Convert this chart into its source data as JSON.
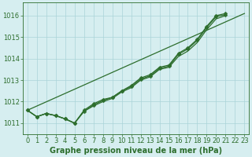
{
  "title": "Graphe pression niveau de la mer (hPa)",
  "bg_color": "#d6eef0",
  "grid_color": "#aad4d8",
  "line_color": "#2d6e2d",
  "xlim": [
    -0.5,
    23.5
  ],
  "ylim": [
    1010.5,
    1016.6
  ],
  "yticks": [
    1011,
    1012,
    1013,
    1014,
    1015,
    1016
  ],
  "xticks": [
    0,
    1,
    2,
    3,
    4,
    5,
    6,
    7,
    8,
    9,
    10,
    11,
    12,
    13,
    14,
    15,
    16,
    17,
    18,
    19,
    20,
    21,
    22,
    23
  ],
  "series": [
    {
      "x": [
        0,
        1,
        2,
        3,
        4,
        5,
        6,
        7,
        8,
        9,
        10,
        11,
        12,
        13,
        14,
        15,
        16,
        17,
        18,
        19,
        20,
        21,
        22,
        23
      ],
      "y": [
        1011.6,
        1011.3,
        1011.45,
        1011.35,
        1011.2,
        1011.0,
        1011.55,
        1011.85,
        1012.05,
        1012.2,
        1012.5,
        1012.7,
        1013.05,
        1013.2,
        1013.55,
        1013.65,
        1014.2,
        1014.45,
        1014.85,
        1015.45,
        1015.95,
        1016.05,
        null,
        null
      ],
      "marker": true
    },
    {
      "x": [
        0,
        1,
        2,
        3,
        4,
        5,
        6,
        7,
        8,
        9,
        10,
        11,
        12,
        13,
        14,
        15,
        16,
        17,
        18,
        19,
        20,
        21,
        22,
        23
      ],
      "y": [
        1011.6,
        1011.3,
        1011.45,
        1011.35,
        1011.2,
        1011.0,
        1011.6,
        1011.9,
        1012.1,
        1012.2,
        1012.5,
        1012.75,
        1013.1,
        1013.25,
        1013.6,
        1013.7,
        1014.25,
        1014.5,
        1014.9,
        1015.5,
        1016.0,
        1016.1,
        null,
        null
      ],
      "marker": true
    },
    {
      "x": [
        0,
        1,
        2,
        3,
        4,
        5,
        6,
        7,
        8,
        9,
        10,
        11,
        12,
        13,
        14,
        15,
        16,
        17,
        18,
        19,
        20,
        21,
        22,
        23
      ],
      "y": [
        1011.6,
        1011.3,
        1011.45,
        1011.35,
        1011.2,
        1011.0,
        1011.55,
        1011.8,
        1012.0,
        1012.15,
        1012.45,
        1012.65,
        1013.0,
        1013.15,
        1013.5,
        1013.6,
        1014.1,
        1014.35,
        1014.75,
        1015.35,
        1015.85,
        1016.0,
        null,
        null
      ],
      "marker": false
    },
    {
      "x": [
        0,
        23
      ],
      "y": [
        1011.6,
        1016.1
      ],
      "marker": false
    }
  ],
  "marker": "D",
  "marker_size": 2.5,
  "linewidth": 0.9,
  "font_color": "#2d6e2d",
  "font_size": 6,
  "title_fontsize": 7,
  "title_fontstyle": "bold"
}
